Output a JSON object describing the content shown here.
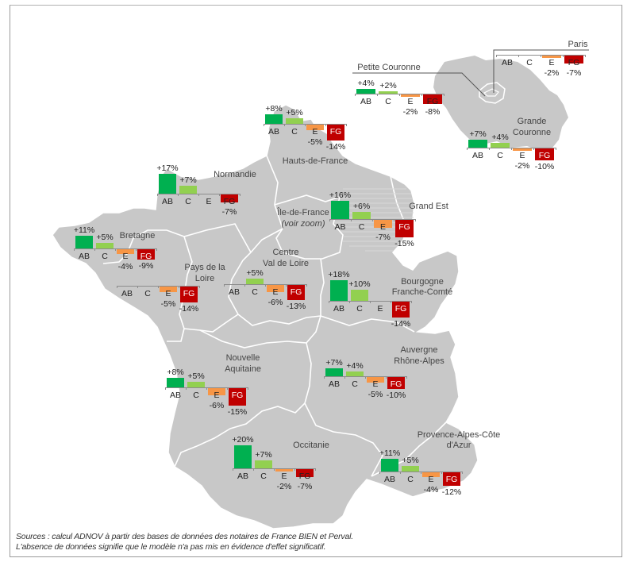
{
  "chart_data": {
    "type": "bar",
    "title": "",
    "categories": [
      "AB",
      "C",
      "E",
      "FG"
    ],
    "value_unit": "%",
    "colors": {
      "AB": "#00b050",
      "C": "#92d050",
      "E": "#f79646",
      "FG": "#c00000"
    },
    "note": "Small-multiple bar charts placed on a map of French regions; missing values mean no significant effect.",
    "series": [
      {
        "name": "Paris",
        "values": [
          null,
          null,
          -2,
          -7
        ]
      },
      {
        "name": "Petite Couronne",
        "values": [
          4,
          2,
          -2,
          -8
        ]
      },
      {
        "name": "Grande Couronne",
        "values": [
          7,
          4,
          -2,
          -10
        ]
      },
      {
        "name": "Hauts-de-France",
        "values": [
          8,
          5,
          -5,
          -14
        ]
      },
      {
        "name": "Normandie",
        "values": [
          17,
          7,
          null,
          -7
        ]
      },
      {
        "name": "Bretagne",
        "values": [
          11,
          5,
          -4,
          -9
        ]
      },
      {
        "name": "Pays de la Loire",
        "values": [
          null,
          null,
          -5,
          -14
        ]
      },
      {
        "name": "Centre Val de Loire",
        "values": [
          null,
          5,
          -6,
          -13
        ]
      },
      {
        "name": "Grand Est",
        "values": [
          16,
          6,
          -7,
          -15
        ]
      },
      {
        "name": "Bourgogne Franche-Comté",
        "values": [
          18,
          10,
          null,
          -14
        ]
      },
      {
        "name": "Nouvelle Aquitaine",
        "values": [
          8,
          5,
          -6,
          -15
        ]
      },
      {
        "name": "Auvergne Rhône-Alpes",
        "values": [
          7,
          4,
          -5,
          -10
        ]
      },
      {
        "name": "Occitanie",
        "values": [
          20,
          7,
          -2,
          -7
        ]
      },
      {
        "name": "Provence-Alpes-Côte d'Azur",
        "values": [
          11,
          5,
          -4,
          -12
        ]
      }
    ]
  },
  "regions": {
    "paris": {
      "name": "Paris",
      "labels": [
        "",
        "",
        "-2%",
        "-7%"
      ]
    },
    "petite_couronne": {
      "name": "Petite Couronne",
      "labels": [
        "+4%",
        "+2%",
        "-2%",
        "-8%"
      ]
    },
    "grande_couronne": {
      "name_1": "Grande",
      "name_2": "Couronne",
      "labels": [
        "+7%",
        "+4%",
        "-2%",
        "-10%"
      ]
    },
    "hauts_de_france": {
      "name": "Hauts-de-France",
      "labels": [
        "+8%",
        "+5%",
        "-5%",
        "-14%"
      ]
    },
    "normandie": {
      "name": "Normandie",
      "labels": [
        "+17%",
        "+7%",
        "",
        "-7%"
      ]
    },
    "bretagne": {
      "name": "Bretagne",
      "labels": [
        "+11%",
        "+5%",
        "-4%",
        "-9%"
      ]
    },
    "pays_de_la_loire": {
      "name_1": "Pays de la",
      "name_2": "Loire",
      "labels": [
        "",
        "",
        "-5%",
        "-14%"
      ]
    },
    "centre": {
      "name_1": "Centre",
      "name_2": "Val de Loire",
      "labels": [
        "",
        "+5%",
        "-6%",
        "-13%"
      ]
    },
    "ile_de_france": {
      "name_1": "Île-de-France",
      "name_2": "(voir zoom)"
    },
    "grand_est": {
      "name": "Grand Est",
      "labels": [
        "+16%",
        "+6%",
        "-7%",
        "-15%"
      ]
    },
    "bfc": {
      "name_1": "Bourgogne",
      "name_2": "Franche-Comté",
      "labels": [
        "+18%",
        "+10%",
        "",
        "-14%"
      ]
    },
    "nouvelle_aquitaine": {
      "name_1": "Nouvelle",
      "name_2": "Aquitaine",
      "labels": [
        "+8%",
        "+5%",
        "-6%",
        "-15%"
      ]
    },
    "ara": {
      "name_1": "Auvergne",
      "name_2": "Rhône-Alpes",
      "labels": [
        "+7%",
        "+4%",
        "-5%",
        "-10%"
      ]
    },
    "occitanie": {
      "name": "Occitanie",
      "labels": [
        "+20%",
        "+7%",
        "-2%",
        "-7%"
      ]
    },
    "paca": {
      "name_1": "Provence-Alpes-Côte",
      "name_2": "d'Azur",
      "labels": [
        "+11%",
        "+5%",
        "-4%",
        "-12%"
      ]
    }
  },
  "categories": [
    "AB",
    "C",
    "E",
    "FG"
  ],
  "footer": {
    "line1": "Sources : calcul ADNOV à partir des bases de données des notaires de France BIEN et Perval.",
    "line2": "L'absence de données signifie que le modèle n'a pas mis en évidence d'effet significatif."
  }
}
